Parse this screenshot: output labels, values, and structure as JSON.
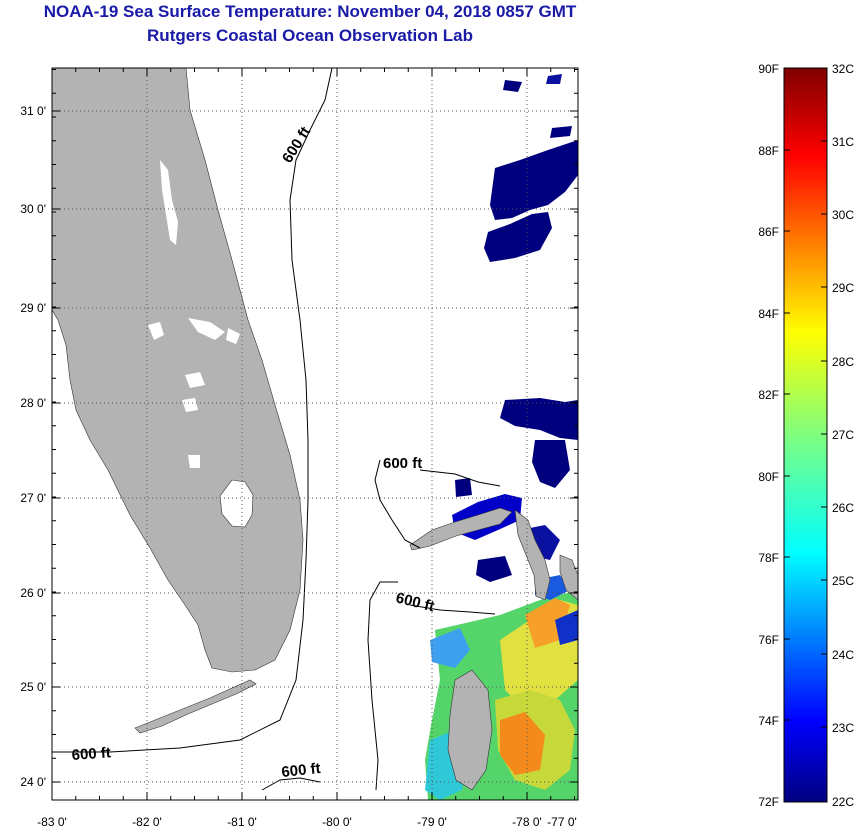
{
  "header": {
    "title": "NOAA-19 Sea Surface Temperature:  November 04, 2018 0857 GMT",
    "subtitle": "Rutgers Coastal Ocean Observation Lab"
  },
  "map": {
    "lon_ticks": [
      "-83 0'",
      "-82 0'",
      "-81 0'",
      "-80 0'",
      "-79 0'",
      "-78 0'",
      "-77 0'"
    ],
    "lat_ticks": [
      "24 0'",
      "25 0'",
      "26 0'",
      "27 0'",
      "28 0'",
      "29 0'",
      "30 0'",
      "31 0'"
    ],
    "contour_labels": [
      "600 ft",
      "600 ft",
      "600 ft",
      "600 ft",
      "600 ft"
    ],
    "colors": {
      "land": "#b3b3b3",
      "grid": "#555555",
      "cold": "#00007f"
    }
  },
  "colorbar": {
    "fahrenheit": [
      "90F",
      "88F",
      "86F",
      "84F",
      "82F",
      "80F",
      "78F",
      "76F",
      "74F",
      "72F"
    ],
    "celsius": [
      "32C",
      "31C",
      "30C",
      "29C",
      "28C",
      "27C",
      "26C",
      "25C",
      "24C",
      "23C",
      "22C"
    ]
  }
}
